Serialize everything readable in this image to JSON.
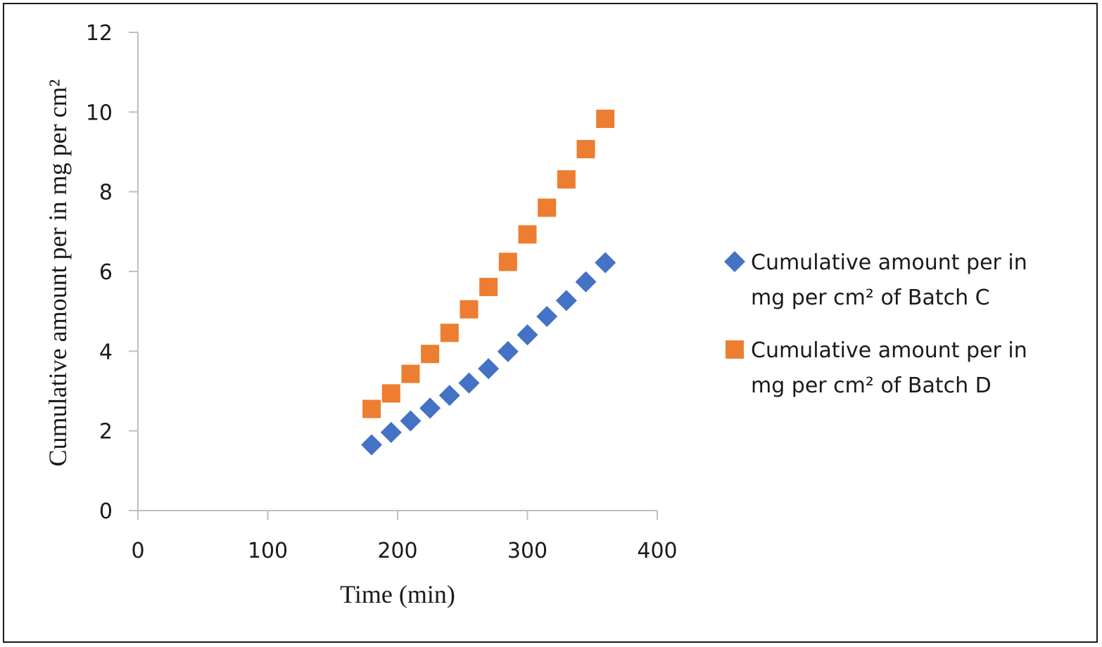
{
  "chart_data": {
    "type": "scatter",
    "title": "",
    "xlabel": "Time (min)",
    "ylabel": "Cumulative amount per in mg per cm²",
    "xlim": [
      0,
      400
    ],
    "ylim": [
      0,
      12
    ],
    "x_ticks": [
      "0",
      "100",
      "200",
      "300",
      "400"
    ],
    "y_ticks": [
      "0",
      "2",
      "4",
      "6",
      "8",
      "10",
      "12"
    ],
    "grid": false,
    "legend_position": "right",
    "series": [
      {
        "name": "Cumulative amount per in mg per cm² of Batch C",
        "legend_lines": [
          "Cumulative amount per in",
          "mg per cm² of Batch C"
        ],
        "marker": "diamond",
        "color": "#4472C4",
        "x": [
          180,
          195,
          210,
          225,
          240,
          255,
          270,
          285,
          300,
          315,
          330,
          345,
          360
        ],
        "y": [
          1.65,
          1.96,
          2.25,
          2.57,
          2.89,
          3.2,
          3.56,
          3.99,
          4.41,
          4.87,
          5.27,
          5.74,
          6.22
        ]
      },
      {
        "name": "Cumulative amount per in mg per cm² of Batch D",
        "legend_lines": [
          "Cumulative amount per in",
          "mg per cm² of Batch D"
        ],
        "marker": "square",
        "color": "#ED7D31",
        "x": [
          180,
          195,
          210,
          225,
          240,
          255,
          270,
          285,
          300,
          315,
          330,
          345,
          360
        ],
        "y": [
          2.55,
          2.94,
          3.43,
          3.93,
          4.46,
          5.05,
          5.61,
          6.24,
          6.93,
          7.6,
          8.31,
          9.07,
          9.83
        ]
      }
    ]
  }
}
